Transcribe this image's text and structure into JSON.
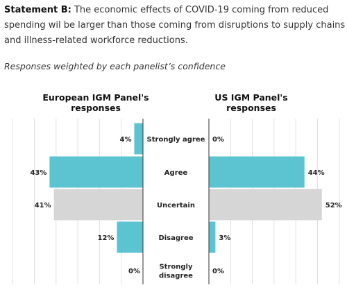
{
  "statement": {
    "label": "Statement B:",
    "text": " The economic effects of COVID-19 coming from reduced spending wil be larger than those coming from disruptions to supply chains and illness-related workforce reductions."
  },
  "subtitle": "Responses weighted by each panelist’s confidence",
  "colors": {
    "bar": "#5bc4d0",
    "uncertain": "#d6d6d6",
    "grid": "#e2e2e2",
    "axis": "#333333"
  },
  "chart_data": {
    "type": "bar",
    "orientation": "horizontal",
    "categories": [
      "Strongly agree",
      "Agree",
      "Uncertain",
      "Disagree",
      "Strongly disagree"
    ],
    "category_lines": [
      [
        "Strongly agree"
      ],
      [
        "Agree"
      ],
      [
        "Uncertain"
      ],
      [
        "Disagree"
      ],
      [
        "Strongly",
        "disagree"
      ]
    ],
    "series": [
      {
        "name": "European IGM Panel's responses",
        "values": [
          4,
          43,
          41,
          12,
          0
        ],
        "labels": [
          "4%",
          "43%",
          "41%",
          "12%",
          "0%"
        ]
      },
      {
        "name": "US IGM Panel's responses",
        "values": [
          0,
          44,
          52,
          3,
          0
        ],
        "labels": [
          "0%",
          "44%",
          "52%",
          "3%",
          "0%"
        ]
      }
    ],
    "highlight_category": "Uncertain",
    "xlim": [
      0,
      60
    ],
    "grid": true
  }
}
